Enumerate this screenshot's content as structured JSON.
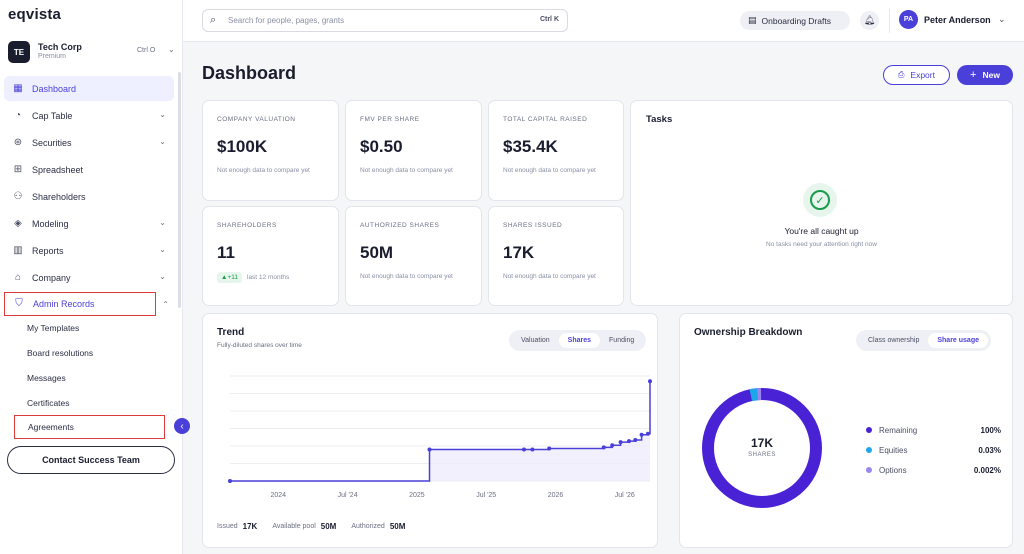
{
  "brand": {
    "logo": "eqvista",
    "accent": "#4a3fd8"
  },
  "org": {
    "initials": "TE",
    "name": "Tech Corp",
    "plan": "Premium",
    "shortcut": "Ctrl O"
  },
  "nav": [
    {
      "label": "Dashboard",
      "icon": "grid-icon"
    },
    {
      "label": "Cap Table",
      "icon": "pie-icon"
    },
    {
      "label": "Securities",
      "icon": "coins-icon"
    },
    {
      "label": "Spreadsheet",
      "icon": "table-icon"
    },
    {
      "label": "Shareholders",
      "icon": "users-icon"
    },
    {
      "label": "Modeling",
      "icon": "cube-icon"
    },
    {
      "label": "Reports",
      "icon": "bar-chart-icon"
    },
    {
      "label": "Company",
      "icon": "building-icon"
    },
    {
      "label": "Admin Records",
      "icon": "shield-icon"
    }
  ],
  "subnav": [
    "My Templates",
    "Board resolutions",
    "Messages",
    "Certificates",
    "Agreements"
  ],
  "contact_label": "Contact Success Team",
  "search": {
    "placeholder": "Search for people, pages, grants",
    "shortcut": "Ctrl K"
  },
  "topbar": {
    "drafts_label": "Onboarding Drafts",
    "user_initials": "PA",
    "user_name": "Peter Anderson"
  },
  "page": {
    "title": "Dashboard",
    "export_label": "Export",
    "new_label": "New"
  },
  "stats": [
    {
      "label": "COMPANY VALUATION",
      "value": "$100K",
      "note": "Not enough data to compare yet"
    },
    {
      "label": "FMV PER SHARE",
      "value": "$0.50",
      "note": "Not enough data to compare yet"
    },
    {
      "label": "TOTAL CAPITAL RAISED",
      "value": "$35.4K",
      "note": "Not enough data to compare yet"
    },
    {
      "label": "SHAREHOLDERS",
      "value": "11",
      "badge": "▲+11",
      "note": "last 12 months"
    },
    {
      "label": "AUTHORIZED SHARES",
      "value": "50M",
      "note": "Not enough data to compare yet"
    },
    {
      "label": "SHARES ISSUED",
      "value": "17K",
      "note": "Not enough data to compare yet"
    }
  ],
  "tasks": {
    "title": "Tasks",
    "heading": "You're all caught up",
    "sub": "No tasks need your attention right now"
  },
  "trend": {
    "title": "Trend",
    "subtitle": "Fully-diluted shares over time",
    "tabs": [
      "Valuation",
      "Shares",
      "Funding"
    ],
    "active_tab": "Shares",
    "footer": [
      {
        "label": "Issued",
        "value": "17K"
      },
      {
        "label": "Available pool",
        "value": "50M"
      },
      {
        "label": "Authorized",
        "value": "50M"
      }
    ]
  },
  "ownership": {
    "title": "Ownership Breakdown",
    "tabs": [
      "Class ownership",
      "Share usage"
    ],
    "active_tab": "Share usage",
    "center_value": "17K",
    "center_label": "SHARES",
    "legend": [
      {
        "label": "Remaining",
        "value": "100%",
        "color": "#4a22d6"
      },
      {
        "label": "Equities",
        "value": "0.03%",
        "color": "#1ea7e8"
      },
      {
        "label": "Options",
        "value": "0.002%",
        "color": "#9a86f0"
      }
    ]
  },
  "chart_data": {
    "type": "line",
    "x_ticks": [
      "2024",
      "Jul '24",
      "2025",
      "Jul '25",
      "2026",
      "Jul '26"
    ],
    "x": [
      0.0,
      0.475,
      0.7,
      0.72,
      0.76,
      0.89,
      0.91,
      0.93,
      0.95,
      0.965,
      0.98,
      0.995,
      1.0
    ],
    "y": [
      0.0,
      0.3,
      0.3,
      0.3,
      0.31,
      0.32,
      0.34,
      0.37,
      0.38,
      0.39,
      0.44,
      0.45,
      0.95
    ],
    "series_color": "#4a3fd8",
    "grid": true
  }
}
